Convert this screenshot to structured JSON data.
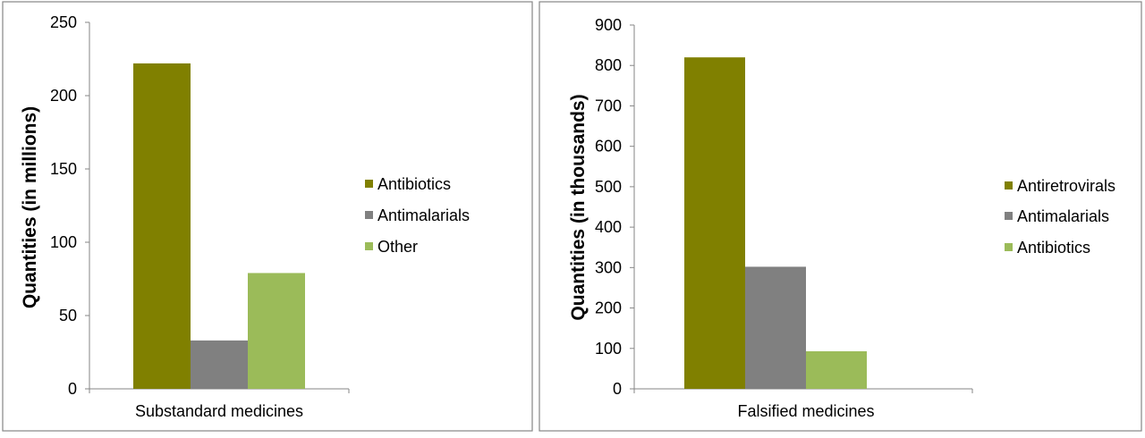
{
  "chart_data": [
    {
      "type": "bar",
      "categories": [
        "Substandard medicines"
      ],
      "series": [
        {
          "name": "Antibiotics",
          "values": [
            222
          ],
          "color": "#808000"
        },
        {
          "name": "Antimalarials",
          "values": [
            33
          ],
          "color": "#808080"
        },
        {
          "name": "Other",
          "values": [
            79
          ],
          "color": "#9BBB59"
        }
      ],
      "ylabel": "Quantities (in millions)",
      "xlabel": "",
      "ylim": [
        0,
        250
      ],
      "yticks": [
        0,
        50,
        100,
        150,
        200,
        250
      ],
      "legend": "right",
      "grid": false
    },
    {
      "type": "bar",
      "categories": [
        "Falsified medicines"
      ],
      "series": [
        {
          "name": "Antiretrovirals",
          "values": [
            820
          ],
          "color": "#808000"
        },
        {
          "name": "Antimalarials",
          "values": [
            302
          ],
          "color": "#808080"
        },
        {
          "name": "Antibiotics",
          "values": [
            93
          ],
          "color": "#9BBB59"
        }
      ],
      "ylabel": "Quantities (in thousands)",
      "xlabel": "",
      "ylim": [
        0,
        900
      ],
      "yticks": [
        0,
        100,
        200,
        300,
        400,
        500,
        600,
        700,
        800,
        900
      ],
      "legend": "right",
      "grid": false
    }
  ]
}
